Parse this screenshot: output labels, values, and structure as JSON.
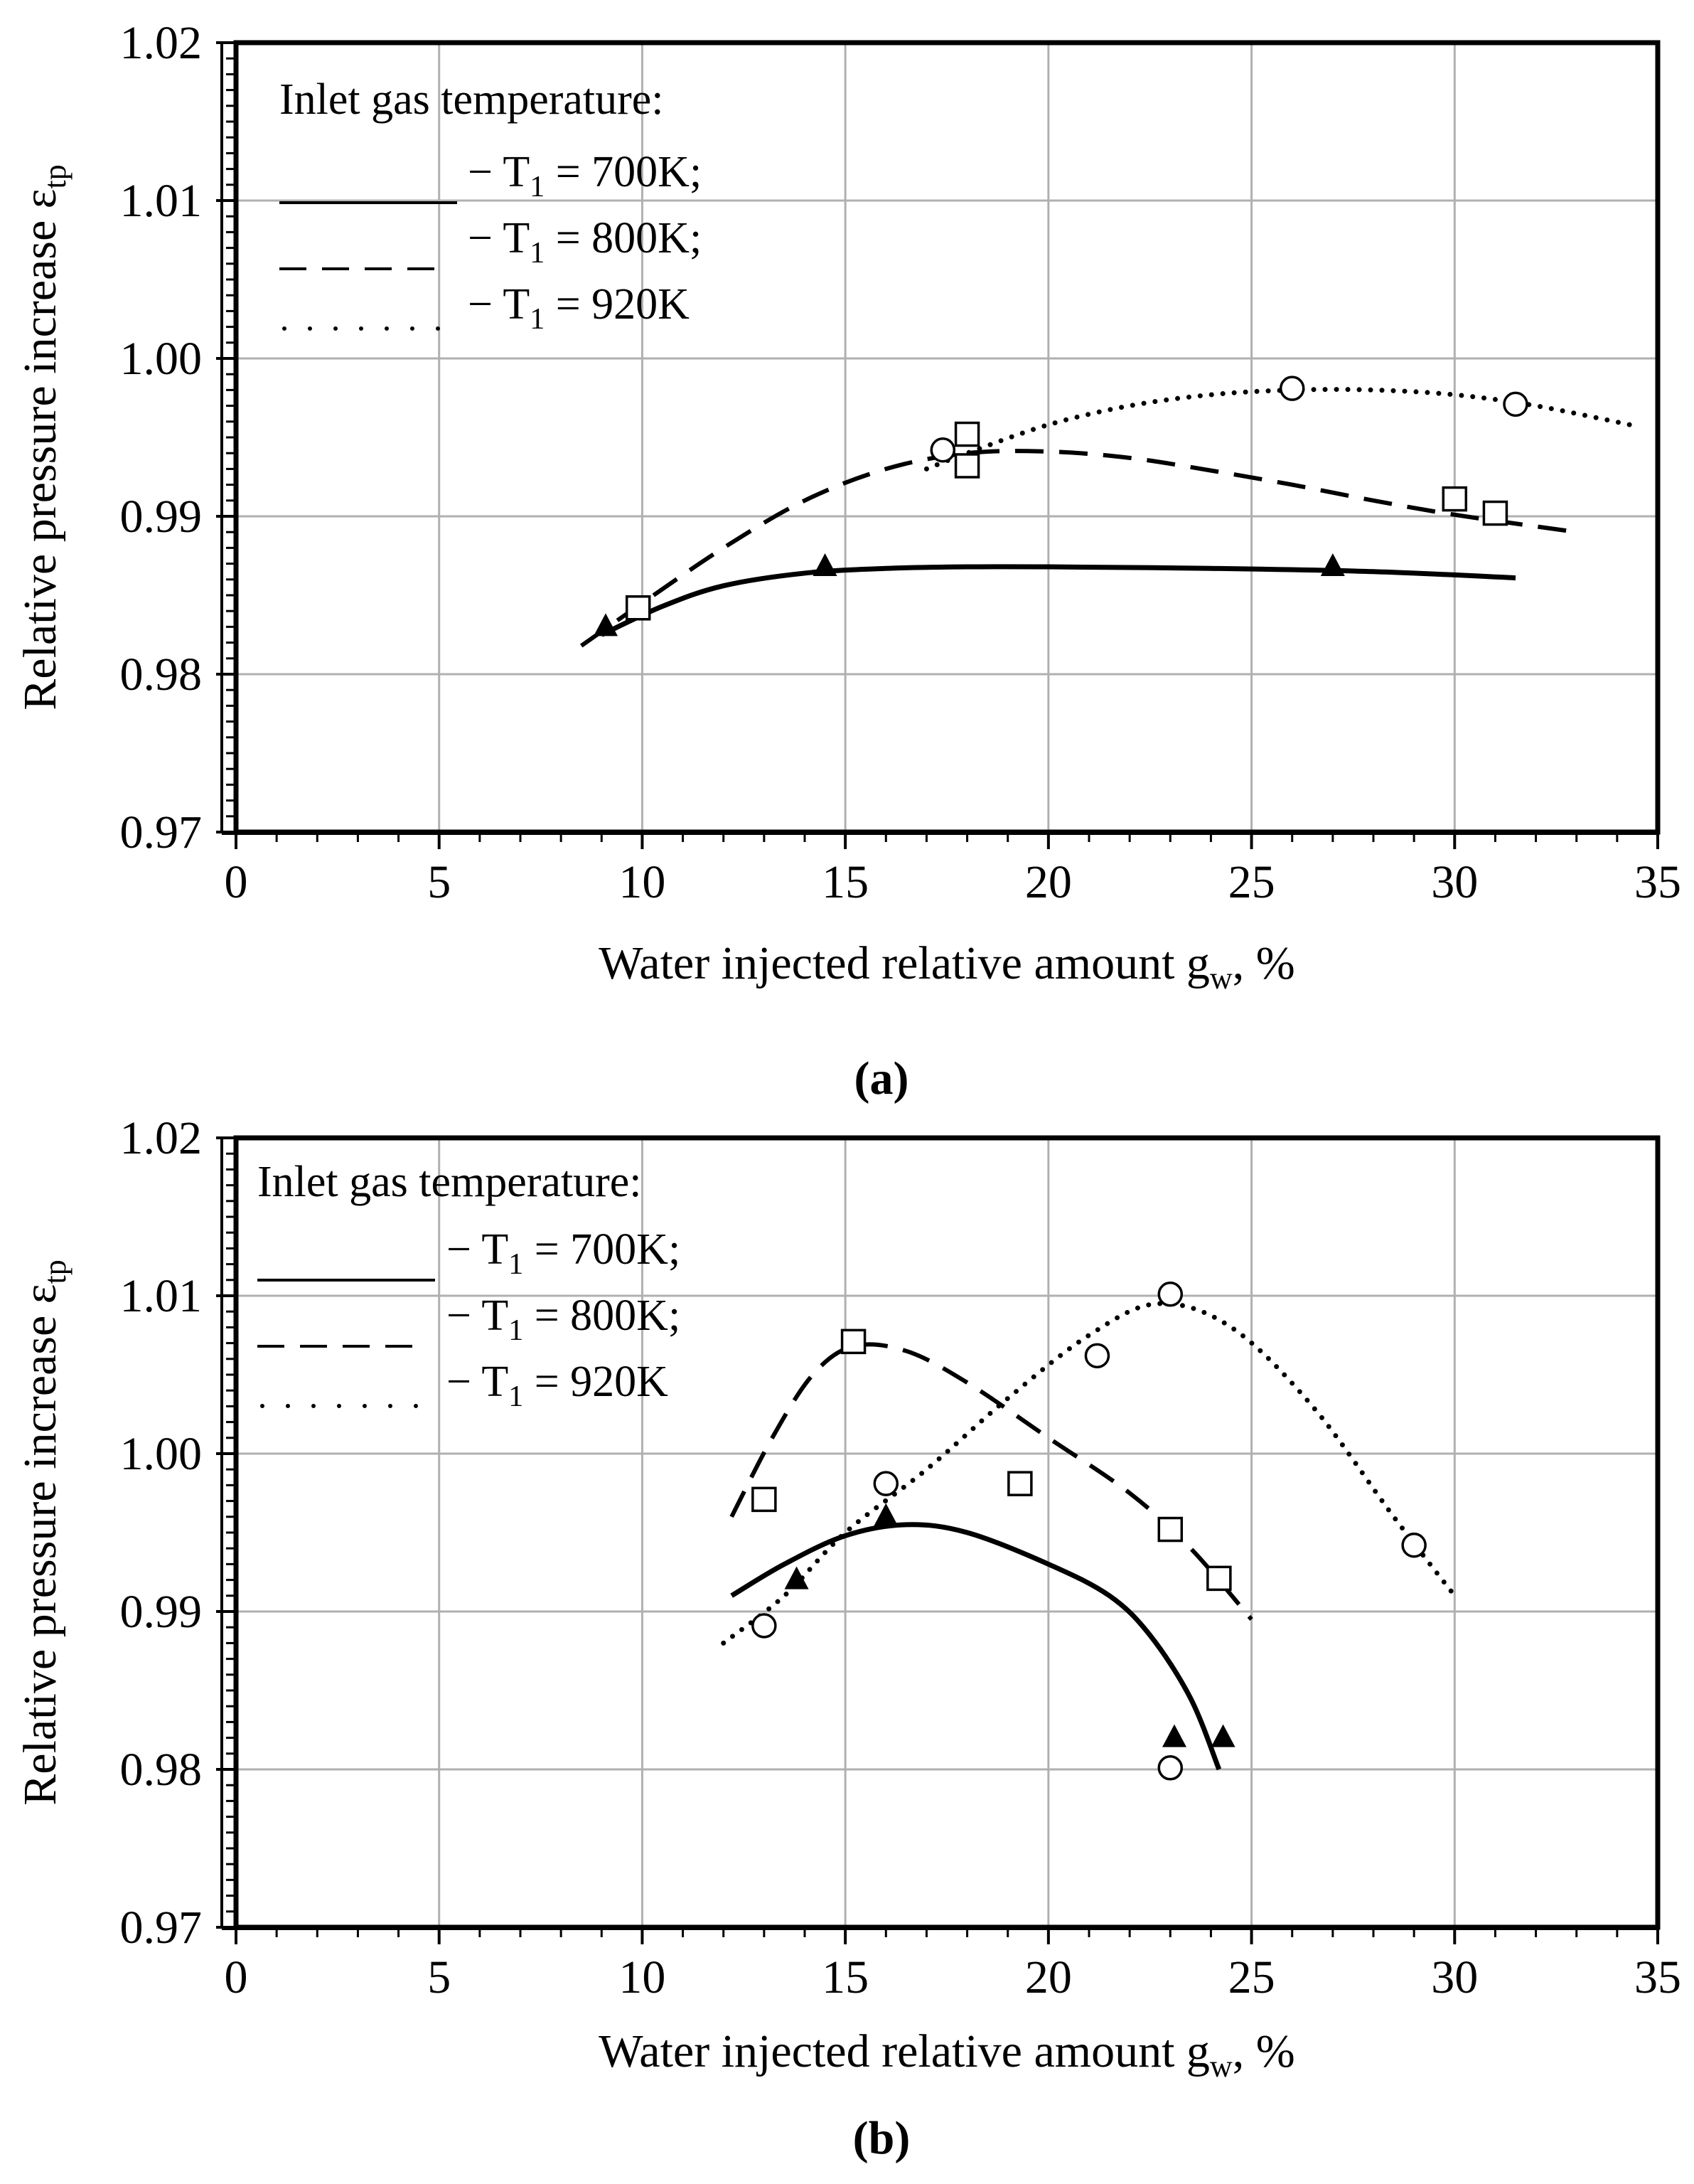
{
  "chart_data": [
    {
      "panel": "a",
      "caption": "(a)",
      "type": "scatter",
      "xlabel": "Water injected relative amount g",
      "xlabel_sub": "w",
      "xlabel_tail": ", %",
      "ylabel": "Relative pressure increase ε",
      "ylabel_sub": "tp",
      "xlim": [
        0,
        35
      ],
      "ylim": [
        0.97,
        1.02
      ],
      "x_ticks": [
        0,
        5,
        10,
        15,
        20,
        25,
        30,
        35
      ],
      "x_tick_labels": [
        "0",
        "5",
        "10",
        "15",
        "20",
        "25",
        "30",
        "35"
      ],
      "y_ticks": [
        0.97,
        0.98,
        0.99,
        1.0,
        1.01,
        1.02
      ],
      "y_tick_labels": [
        "0.97",
        "0.98",
        "0.99",
        "1.00",
        "1.01",
        "1.02"
      ],
      "grid": true,
      "legend_title": "Inlet gas temperature:",
      "legend_position": "top-left",
      "series": [
        {
          "name": "T1 = 700K",
          "legend_prefix": "− T",
          "legend_sub": "1",
          "legend_suffix": " = 700K;",
          "line_style": "solid",
          "marker": "triangle-filled",
          "points": [
            [
              9.1,
              0.983
            ],
            [
              14.5,
              0.9868
            ],
            [
              27.0,
              0.9868
            ]
          ],
          "curve": [
            [
              9.0,
              0.9825
            ],
            [
              10.5,
              0.9843
            ],
            [
              12.0,
              0.9856
            ],
            [
              14.0,
              0.9864
            ],
            [
              16.0,
              0.9867
            ],
            [
              18.0,
              0.9868
            ],
            [
              20.0,
              0.9868
            ],
            [
              24.0,
              0.9867
            ],
            [
              28.0,
              0.9865
            ],
            [
              31.5,
              0.9861
            ]
          ]
        },
        {
          "name": "T1 = 800K",
          "legend_prefix": "− T",
          "legend_sub": "1",
          "legend_suffix": " = 800K;",
          "line_style": "dashed",
          "marker": "square-open",
          "points": [
            [
              9.9,
              0.9842
            ],
            [
              18.0,
              0.9952
            ],
            [
              18.0,
              0.9932
            ],
            [
              30.0,
              0.9911
            ],
            [
              31.0,
              0.9902
            ]
          ],
          "curve": [
            [
              8.5,
              0.9818
            ],
            [
              10.0,
              0.9845
            ],
            [
              12.0,
              0.988
            ],
            [
              14.0,
              0.991
            ],
            [
              16.0,
              0.993
            ],
            [
              18.0,
              0.994
            ],
            [
              20.0,
              0.9941
            ],
            [
              22.0,
              0.9937
            ],
            [
              24.0,
              0.9929
            ],
            [
              26.0,
              0.992
            ],
            [
              28.0,
              0.991
            ],
            [
              30.0,
              0.9901
            ],
            [
              33.0,
              0.989
            ]
          ]
        },
        {
          "name": "T1 = 920K",
          "legend_prefix": "− T",
          "legend_sub": "1",
          "legend_suffix": " = 920K",
          "line_style": "dotted",
          "marker": "circle-open",
          "points": [
            [
              17.4,
              0.9942
            ],
            [
              26.0,
              0.9981
            ],
            [
              31.5,
              0.9971
            ]
          ],
          "curve": [
            [
              17.0,
              0.993
            ],
            [
              18.0,
              0.994
            ],
            [
              20.0,
              0.9958
            ],
            [
              22.0,
              0.997
            ],
            [
              24.0,
              0.9977
            ],
            [
              26.0,
              0.998
            ],
            [
              28.0,
              0.998
            ],
            [
              30.0,
              0.9977
            ],
            [
              32.0,
              0.997
            ],
            [
              34.5,
              0.9957
            ]
          ]
        }
      ]
    },
    {
      "panel": "b",
      "caption": "(b)",
      "type": "scatter",
      "xlabel": "Water injected relative amount g",
      "xlabel_sub": "w",
      "xlabel_tail": ", %",
      "ylabel": "Relative pressure increase ε",
      "ylabel_sub": "tp",
      "xlim": [
        0,
        35
      ],
      "ylim": [
        0.97,
        1.02
      ],
      "x_ticks": [
        0,
        5,
        10,
        15,
        20,
        25,
        30,
        35
      ],
      "x_tick_labels": [
        "0",
        "5",
        "10",
        "15",
        "20",
        "25",
        "30",
        "35"
      ],
      "y_ticks": [
        0.97,
        0.98,
        0.99,
        1.0,
        1.01,
        1.02
      ],
      "y_tick_labels": [
        "0.97",
        "0.98",
        "0.99",
        "1.00",
        "1.01",
        "1.02"
      ],
      "grid": true,
      "legend_title": "Inlet gas temperature:",
      "legend_position": "top-left",
      "series": [
        {
          "name": "T1 = 700K",
          "legend_prefix": "− T",
          "legend_sub": "1",
          "legend_suffix": " = 700K;",
          "line_style": "solid",
          "marker": "triangle-filled",
          "points": [
            [
              13.8,
              0.992
            ],
            [
              16.0,
              0.996
            ],
            [
              23.1,
              0.982
            ],
            [
              24.3,
              0.982
            ]
          ],
          "curve": [
            [
              12.2,
              0.991
            ],
            [
              13.5,
              0.993
            ],
            [
              15.0,
              0.9948
            ],
            [
              16.5,
              0.9955
            ],
            [
              18.0,
              0.995
            ],
            [
              20.0,
              0.993
            ],
            [
              21.5,
              0.991
            ],
            [
              22.5,
              0.9885
            ],
            [
              23.5,
              0.9845
            ],
            [
              24.2,
              0.98
            ]
          ]
        },
        {
          "name": "T1 = 800K",
          "legend_prefix": "− T",
          "legend_sub": "1",
          "legend_suffix": " = 800K;",
          "line_style": "dashed",
          "marker": "square-open",
          "points": [
            [
              13.0,
              0.9971
            ],
            [
              15.2,
              1.0071
            ],
            [
              19.3,
              0.9981
            ],
            [
              23.0,
              0.9952
            ],
            [
              24.2,
              0.9921
            ]
          ],
          "curve": [
            [
              12.2,
              0.996
            ],
            [
              13.2,
              1.001
            ],
            [
              14.2,
              1.005
            ],
            [
              15.2,
              1.0068
            ],
            [
              16.5,
              1.0065
            ],
            [
              18.0,
              1.0045
            ],
            [
              20.0,
              1.001
            ],
            [
              22.0,
              0.9975
            ],
            [
              23.5,
              0.994
            ],
            [
              25.0,
              0.9895
            ]
          ]
        },
        {
          "name": "T1 = 920K",
          "legend_prefix": "− T",
          "legend_sub": "1",
          "legend_suffix": " = 920K",
          "line_style": "dotted",
          "marker": "circle-open",
          "points": [
            [
              13.0,
              0.9891
            ],
            [
              16.0,
              0.9981
            ],
            [
              21.2,
              1.0062
            ],
            [
              23.0,
              1.0101
            ],
            [
              23.0,
              0.9801
            ],
            [
              29.0,
              0.9942
            ]
          ],
          "curve": [
            [
              12.0,
              0.988
            ],
            [
              13.5,
              0.991
            ],
            [
              15.0,
              0.995
            ],
            [
              17.0,
              0.999
            ],
            [
              19.0,
              1.0035
            ],
            [
              21.0,
              1.0075
            ],
            [
              22.7,
              1.0095
            ],
            [
              24.5,
              1.008
            ],
            [
              26.5,
              1.003
            ],
            [
              28.5,
              0.996
            ],
            [
              30.0,
              0.991
            ]
          ]
        }
      ]
    }
  ]
}
